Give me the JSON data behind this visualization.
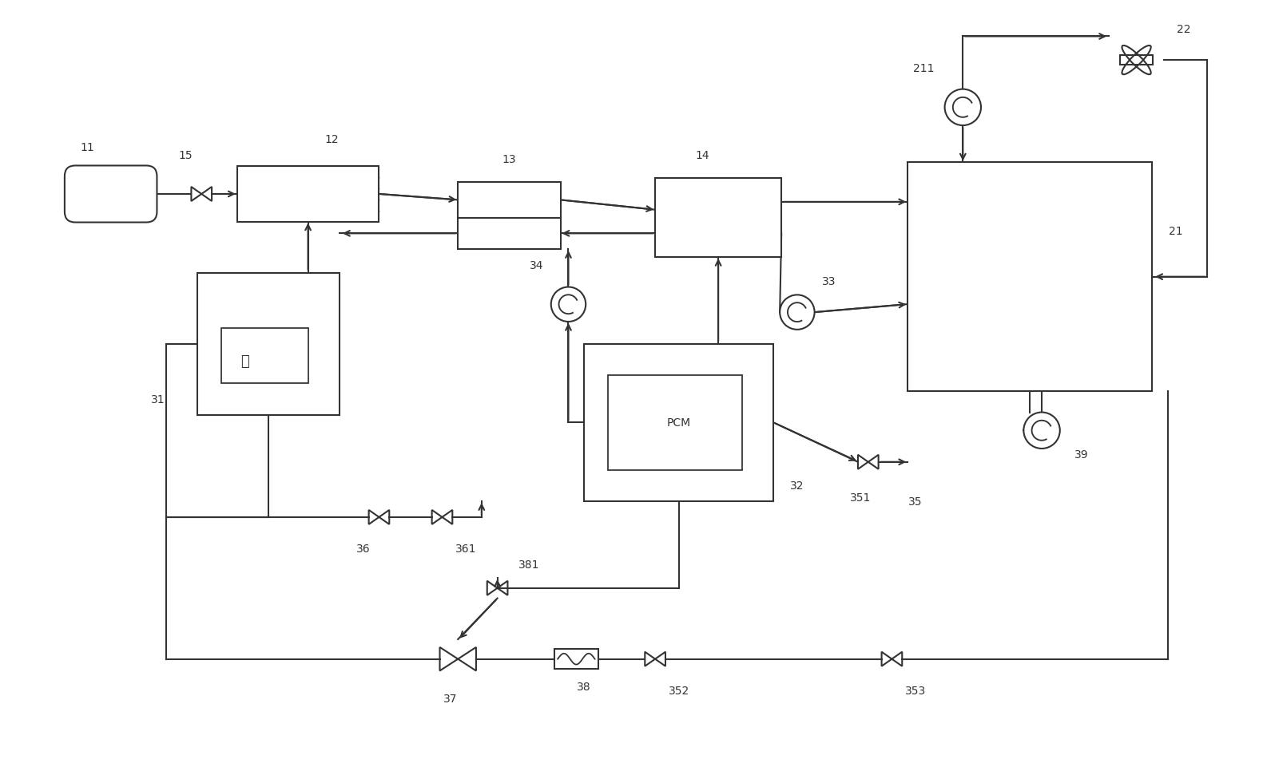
{
  "bg_color": "#ffffff",
  "line_color": "#333333",
  "fig_width": 15.81,
  "fig_height": 9.62
}
